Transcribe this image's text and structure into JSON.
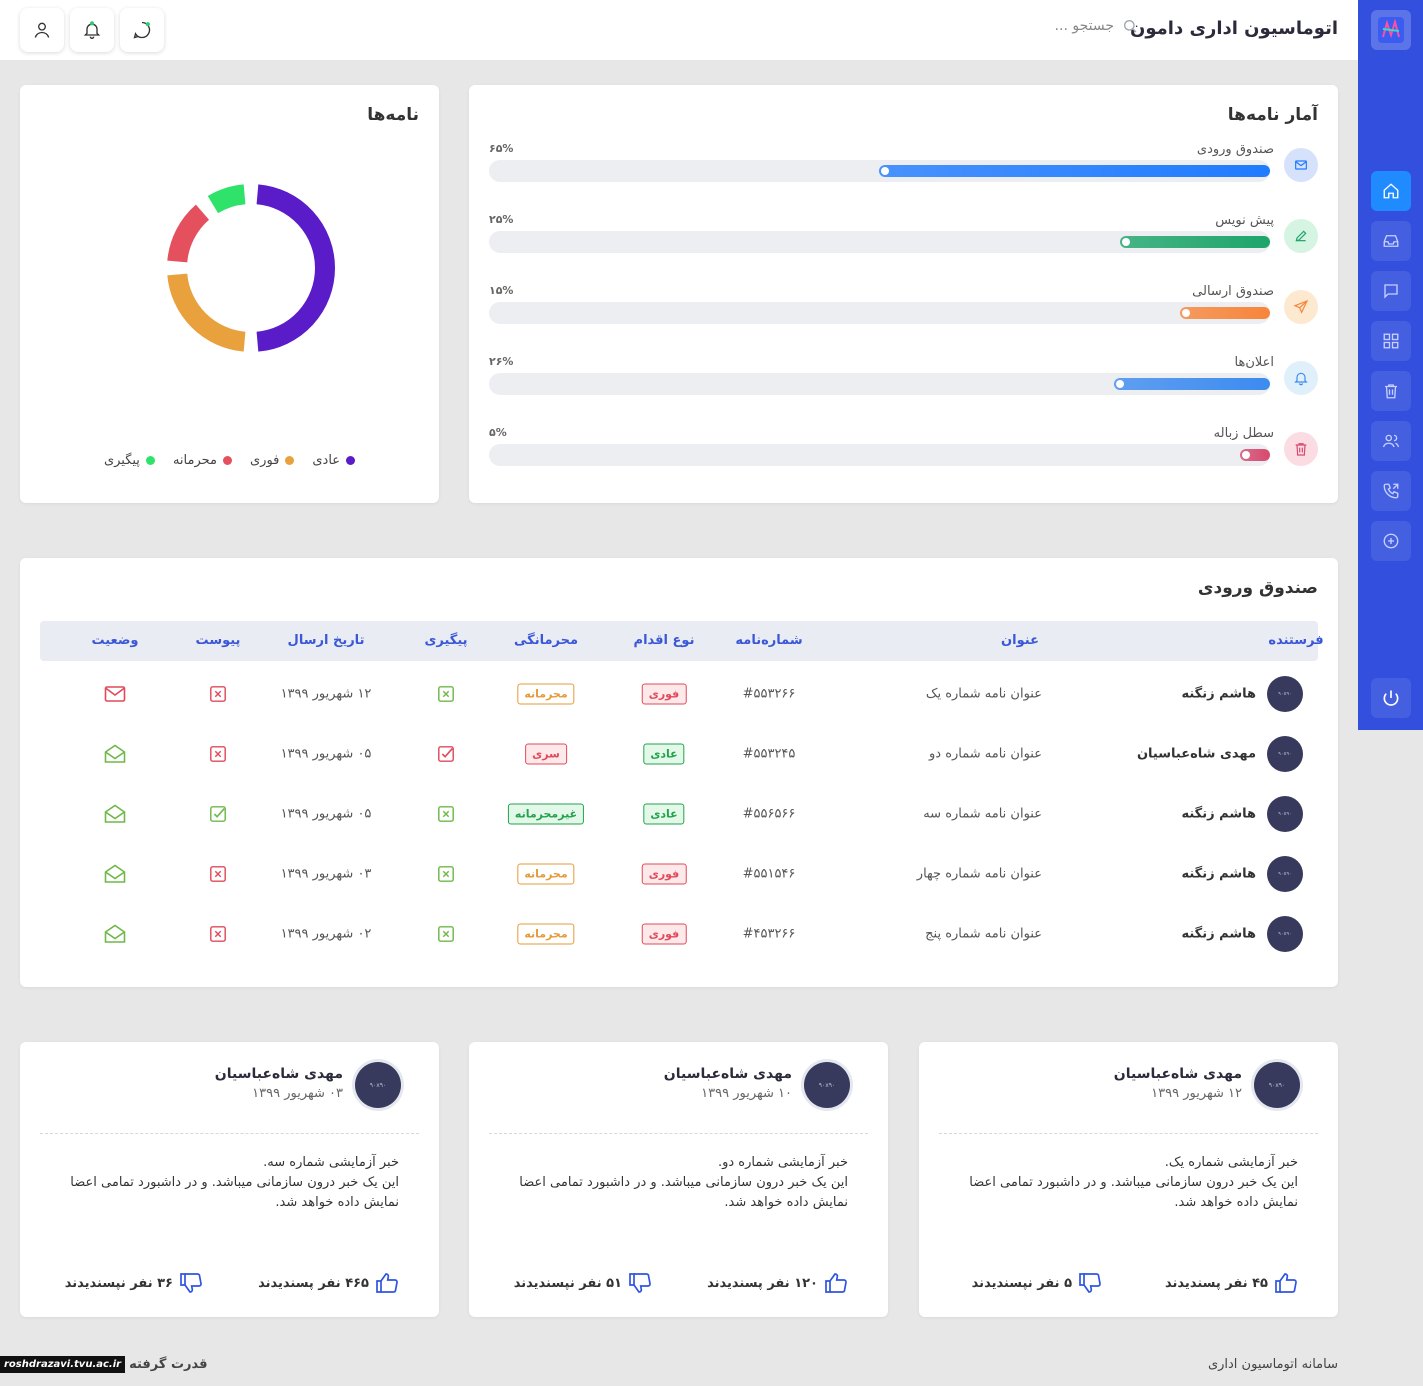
{
  "header": {
    "app_title": "اتوماسیون اداری دامون",
    "search_placeholder": "جستجو ..."
  },
  "stats": {
    "title": "آمار نامه‌ها",
    "items": [
      {
        "label": "صندوق ورودی",
        "percent": 65,
        "percent_text": "۶۵%",
        "color": "#1f7bff",
        "icon": "mail-icon"
      },
      {
        "label": "پیش نویس",
        "percent": 25,
        "percent_text": "۲۵%",
        "color": "#1ea56a",
        "icon": "pencil-icon"
      },
      {
        "label": "صندوق ارسالی",
        "percent": 15,
        "percent_text": "۱۵%",
        "color": "#f7853a",
        "icon": "send-icon"
      },
      {
        "label": "اعلان‌ها",
        "percent": 26,
        "percent_text": "۲۶%",
        "color": "#3c8bf0",
        "icon": "bell-icon"
      },
      {
        "label": "سطل زباله",
        "percent": 5,
        "percent_text": "۵%",
        "color": "#d64a6f",
        "icon": "trash-icon"
      }
    ]
  },
  "chart_data": {
    "type": "pie",
    "title": "نامه‌ها",
    "categories": [
      "عادی",
      "فوری",
      "محرمانه",
      "پیگیری"
    ],
    "values": [
      50,
      25,
      15,
      10
    ],
    "colors": [
      "#5a1cc9",
      "#e8a13c",
      "#e5505f",
      "#2fe36a"
    ],
    "legend": "bottom"
  },
  "inbox": {
    "title": "صندوق ورودی",
    "columns": [
      "فرستنده",
      "عنوان",
      "شماره‌نامه",
      "نوع اقدام",
      "محرمانگی",
      "پیگیری",
      "تاریخ ارسال",
      "پیوست",
      "وضعیت"
    ],
    "avatar_text": "۹۰x۹۰",
    "rows": [
      {
        "sender": "هاشم زنگنه",
        "subject": "عنوان نامه شماره یک",
        "number": "#۵۵۳۲۶۶",
        "action": "فوری",
        "action_color": "red",
        "privacy": "محرمانه",
        "privacy_color": "orange",
        "followup": "x",
        "date": "۱۲ شهریور ۱۳۹۹",
        "attachment": "x",
        "status": "unread"
      },
      {
        "sender": "مهدی شاه‌عباسیان",
        "subject": "عنوان نامه شماره دو",
        "number": "#۵۵۳۲۴۵",
        "action": "عادی",
        "action_color": "green",
        "privacy": "سری",
        "privacy_color": "red",
        "followup": "check-red",
        "date": "۰۵ شهریور ۱۳۹۹",
        "attachment": "x",
        "status": "read"
      },
      {
        "sender": "هاشم زنگنه",
        "subject": "عنوان نامه شماره سه",
        "number": "#۵۵۶۵۶۶",
        "action": "عادی",
        "action_color": "green",
        "privacy": "غیرمحرمانه",
        "privacy_color": "green",
        "followup": "x",
        "date": "۰۵ شهریور ۱۳۹۹",
        "attachment": "check",
        "status": "read"
      },
      {
        "sender": "هاشم زنگنه",
        "subject": "عنوان نامه شماره چهار",
        "number": "#۵۵۱۵۴۶",
        "action": "فوری",
        "action_color": "red",
        "privacy": "محرمانه",
        "privacy_color": "orange",
        "followup": "x",
        "date": "۰۳ شهریور ۱۳۹۹",
        "attachment": "x",
        "status": "read"
      },
      {
        "sender": "هاشم زنگنه",
        "subject": "عنوان نامه شماره پنج",
        "number": "#۴۵۳۲۶۶",
        "action": "فوری",
        "action_color": "red",
        "privacy": "محرمانه",
        "privacy_color": "orange",
        "followup": "x",
        "date": "۰۲ شهریور ۱۳۹۹",
        "attachment": "x",
        "status": "read"
      }
    ]
  },
  "news": [
    {
      "author": "مهدی شاه‌عباسیان",
      "date": "۱۲ شهریور ۱۳۹۹",
      "avatar_text": "۹۰x۹۰",
      "line1": "خبر آزمایشی شماره یک.",
      "line2": "این یک خبر درون سازمانی میباشد. و در داشبورد تمامی اعضا نمایش داده خواهد شد.",
      "likes": "۴۵ نفر پسندیدند",
      "dislikes": "۵ نفر نپسندیدند"
    },
    {
      "author": "مهدی شاه‌عباسیان",
      "date": "۱۰ شهریور ۱۳۹۹",
      "avatar_text": "۹۰x۹۰",
      "line1": "خبر آزمایشی شماره دو.",
      "line2": "این یک خبر درون سازمانی میباشد. و در داشبورد تمامی اعضا نمایش داده خواهد شد.",
      "likes": "۱۲۰ نفر پسندیدند",
      "dislikes": "۵۱ نفر نپسندیدند"
    },
    {
      "author": "مهدی شاه‌عباسیان",
      "date": "۰۳ شهریور ۱۳۹۹",
      "avatar_text": "۹۰x۹۰",
      "line1": "خبر آزمایشی شماره سه.",
      "line2": "این یک خبر درون سازمانی میباشد. و در داشبورد تمامی اعضا نمایش داده خواهد شد.",
      "likes": "۴۶۵ نفر پسندیدند",
      "dislikes": "۳۶ نفر نپسندیدند"
    }
  ],
  "footer": {
    "system_name": "سامانه اتوماسیون اداری",
    "powered_by": "قدرت گرفته",
    "watermark": "roshdrazavi.tvu.ac.ir"
  },
  "sidebar": {
    "items": [
      "home-icon",
      "inbox-icon",
      "chat-icon",
      "grid-icon",
      "trash-icon",
      "users-icon",
      "phone-forward-icon",
      "plus-circle-icon"
    ],
    "active": "home-icon",
    "power": "power-icon"
  }
}
